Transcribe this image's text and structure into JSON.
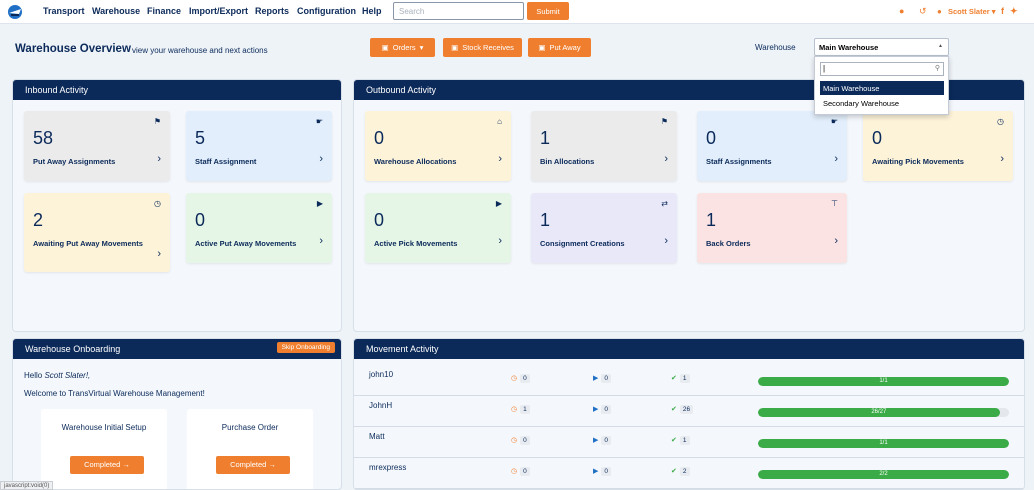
{
  "nav": {
    "items": [
      "Transport",
      "Warehouse",
      "Finance",
      "Import/Export",
      "Reports",
      "Configuration",
      "Help"
    ],
    "search_placeholder": "Search",
    "submit_label": "Submit",
    "user_name": "Scott Slater"
  },
  "header": {
    "title": "Warehouse Overview",
    "subtitle": "view your warehouse and next actions",
    "orders_label": "Orders",
    "stock_receives_label": "Stock Receives",
    "put_away_label": "Put Away",
    "warehouse_label": "Warehouse",
    "warehouse_selected": "Main Warehouse",
    "warehouse_options": [
      "Main Warehouse",
      "Secondary Warehouse"
    ]
  },
  "inbound": {
    "title": "Inbound Activity",
    "cards": [
      {
        "value": "58",
        "label": "Put Away Assignments",
        "icon": "tag-icon",
        "color": "gray"
      },
      {
        "value": "5",
        "label": "Staff Assignment",
        "icon": "hand-point-icon",
        "color": "blue"
      },
      {
        "value": "2",
        "label": "Awaiting Put Away Movements",
        "icon": "clock-icon",
        "color": "yellow"
      },
      {
        "value": "0",
        "label": "Active Put Away Movements",
        "icon": "play-icon",
        "color": "green"
      }
    ]
  },
  "outbound": {
    "title": "Outbound Activity",
    "cards": [
      {
        "value": "0",
        "label": "Warehouse Allocations",
        "icon": "home-icon",
        "color": "yellow"
      },
      {
        "value": "1",
        "label": "Bin Allocations",
        "icon": "tag-icon",
        "color": "gray"
      },
      {
        "value": "0",
        "label": "Staff Assignments",
        "icon": "hand-point-icon",
        "color": "blue"
      },
      {
        "value": "0",
        "label": "Awaiting Pick Movements",
        "icon": "clock-icon",
        "color": "yellow"
      },
      {
        "value": "0",
        "label": "Active Pick Movements",
        "icon": "play-icon",
        "color": "green"
      },
      {
        "value": "1",
        "label": "Consignment Creations",
        "icon": "shuffle-icon",
        "color": "purple"
      },
      {
        "value": "1",
        "label": "Back Orders",
        "icon": "thumbtack-icon",
        "color": "red"
      }
    ]
  },
  "onboarding": {
    "title": "Warehouse Onboarding",
    "skip_label": "Skip Onboarding",
    "greeting_prefix": "Hello",
    "greeting_name": "Scott Slater!,",
    "welcome": "Welcome to TransVirtual Warehouse Management!",
    "steps": [
      {
        "title": "Warehouse Initial Setup",
        "button": "Completed →"
      },
      {
        "title": "Purchase Order",
        "button": "Completed →"
      }
    ]
  },
  "movement": {
    "title": "Movement Activity",
    "rows": [
      {
        "name": "john10",
        "awaiting": "0",
        "active": "0",
        "done": "1",
        "progress_text": "1/1",
        "progress": 1.0
      },
      {
        "name": "JohnH",
        "awaiting": "1",
        "active": "0",
        "done": "26",
        "progress_text": "26/27",
        "progress": 0.963
      },
      {
        "name": "Matt",
        "awaiting": "0",
        "active": "0",
        "done": "1",
        "progress_text": "1/1",
        "progress": 1.0
      },
      {
        "name": "mrexpress",
        "awaiting": "0",
        "active": "0",
        "done": "2",
        "progress_text": "2/2",
        "progress": 1.0
      }
    ]
  },
  "status_bar": "javascript:void(0)",
  "colors": {
    "navy": "#0b2a5a",
    "orange": "#ef7f2f",
    "green": "#3aab47"
  }
}
